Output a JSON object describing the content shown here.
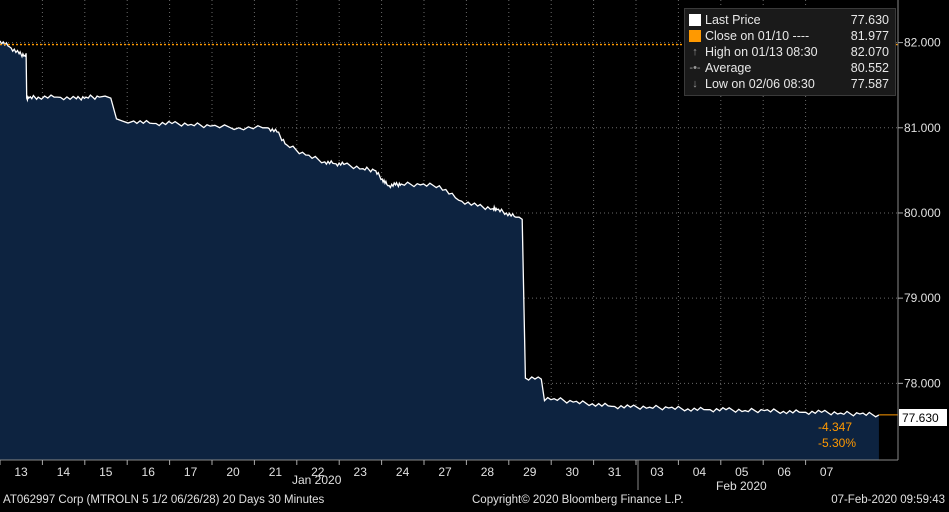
{
  "chart_data": {
    "type": "area",
    "title": "",
    "xlabel": "",
    "ylabel": "",
    "ylim": [
      77.1,
      82.5
    ],
    "y_ticks": [
      "82.000",
      "81.000",
      "80.000",
      "79.000",
      "78.000"
    ],
    "y_tick_values": [
      82.0,
      81.0,
      80.0,
      79.0,
      78.0
    ],
    "x_tick_labels": [
      "13",
      "14",
      "15",
      "16",
      "17",
      "20",
      "21",
      "22",
      "23",
      "24",
      "27",
      "28",
      "29",
      "30",
      "31",
      "03",
      "04",
      "05",
      "06",
      "07"
    ],
    "month_labels": [
      "Jan 2020",
      "Feb 2020"
    ],
    "series": [
      {
        "name": "Last Price",
        "x": [
          "13",
          "13.5",
          "14",
          "14.3",
          "14.5",
          "15",
          "16",
          "17",
          "17.5",
          "18.2",
          "20",
          "21",
          "22",
          "23",
          "24",
          "25.5",
          "27",
          "27.5",
          "28",
          "29",
          "30",
          "30.5",
          "31",
          "32",
          "32.6",
          "33",
          "33.3",
          "33.7",
          "34",
          "35",
          "36",
          "37",
          "38",
          "38.8",
          "39",
          "39.5",
          "40",
          "41",
          "42",
          "43",
          "44",
          "45",
          "46",
          "47",
          "48",
          "49",
          "50",
          "51",
          "52",
          "53",
          "54",
          "55",
          "56",
          "57",
          "58",
          "59"
        ],
        "values": [
          82.02,
          81.95,
          81.87,
          81.85,
          81.35,
          81.36,
          81.36,
          81.34,
          81.36,
          81.36,
          81.08,
          81.05,
          81.05,
          81.04,
          81.02,
          81.0,
          81.0,
          80.95,
          80.8,
          80.68,
          80.6,
          80.58,
          80.57,
          80.52,
          80.5,
          80.4,
          80.32,
          80.33,
          80.34,
          80.33,
          80.32,
          80.15,
          80.08,
          80.05,
          80.04,
          80.0,
          79.95,
          78.05,
          77.82,
          77.78,
          77.76,
          77.73,
          77.72,
          77.72,
          77.71,
          77.7,
          77.69,
          77.69,
          77.68,
          77.68,
          77.67,
          77.66,
          77.66,
          77.65,
          77.64,
          77.63
        ]
      }
    ],
    "legend": {
      "position": "top-right",
      "entries": [
        {
          "label": "Last Price",
          "value": "77.630",
          "color": "#ffffff",
          "marker": "square"
        },
        {
          "label": "Close on 01/10 ----",
          "value": "81.977",
          "color": "#ff9900",
          "marker": "square"
        },
        {
          "label": "High on 01/13 08:30",
          "value": "82.070",
          "color": "#999999",
          "marker": "arrow-up"
        },
        {
          "label": "Average",
          "value": "80.552",
          "color": "#999999",
          "marker": "dot-line"
        },
        {
          "label": "Low on 02/06 08:30",
          "value": "77.587",
          "color": "#999999",
          "marker": "arrow-down"
        }
      ]
    },
    "reference_line": {
      "label": "Close on 01/10",
      "value": 81.977,
      "color": "#ff9900"
    },
    "last_price_tag": "77.630",
    "last_price_value": 77.63,
    "change_labels": [
      "-4.347",
      "-5.30%"
    ],
    "grid": true,
    "colors": {
      "area_fill": "#0d2340",
      "line": "#ffffff",
      "grid": "#6a6a6a",
      "accent": "#ff9900"
    }
  },
  "footer": {
    "left": "AT062997 Corp (MTROLN 5 1/2 06/26/28) 20 Days 30 Minutes",
    "center": "Copyright© 2020 Bloomberg Finance L.P.",
    "right": "07-Feb-2020 09:59:43"
  }
}
